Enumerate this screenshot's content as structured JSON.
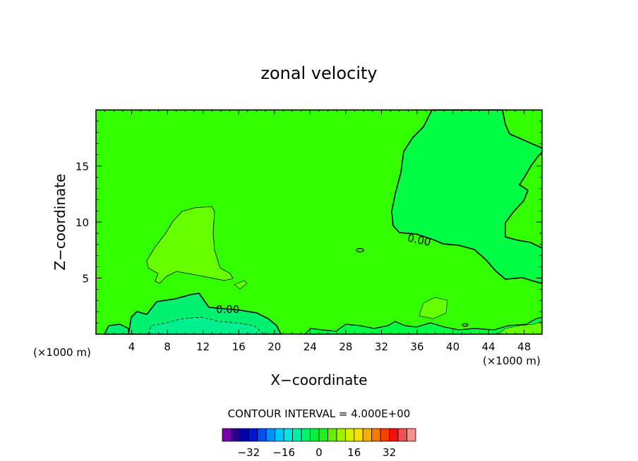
{
  "chart_data": {
    "type": "contour",
    "title": "zonal velocity",
    "xlabel": "X−coordinate",
    "ylabel": "Z−coordinate",
    "xlim": [
      0,
      50
    ],
    "ylim": [
      0,
      20
    ],
    "x_ticks": [
      4,
      8,
      12,
      16,
      20,
      24,
      28,
      32,
      36,
      40,
      44,
      48
    ],
    "x_tick_labels": [
      "4",
      "8",
      "12",
      "16",
      "20",
      "24",
      "28",
      "32",
      "36",
      "40",
      "44",
      "48"
    ],
    "y_ticks": [
      5,
      10,
      15
    ],
    "y_tick_labels": [
      "5",
      "10",
      "15"
    ],
    "x_unit_left": "(×1000 m)",
    "x_unit_right": "(×1000 m)",
    "contour_interval_text": "CONTOUR INTERVAL = 4.000E+00",
    "contour_labels": [
      "0.00",
      "0.00"
    ],
    "colorbar": {
      "colors": [
        "#7a00aa",
        "#2c008e",
        "#0000b4",
        "#0014d8",
        "#0050f0",
        "#0090f8",
        "#00c8f8",
        "#00e8e0",
        "#00f0a8",
        "#00f070",
        "#00f040",
        "#20f020",
        "#60f000",
        "#a0f000",
        "#d8f000",
        "#f8e000",
        "#f8b000",
        "#f87800",
        "#f84000",
        "#f01010",
        "#f05050",
        "#f89090"
      ],
      "tick_values": [
        -32,
        -16,
        0,
        16,
        32
      ],
      "tick_labels": [
        "−32",
        "−16",
        "0",
        "16",
        "32"
      ]
    },
    "regions": {
      "background": "#33ff00",
      "light_green": "#66ff00",
      "negative_right": "#00ff44",
      "negative_bottom": "#00f070",
      "strong_negative_bottom": "#00f090"
    }
  }
}
